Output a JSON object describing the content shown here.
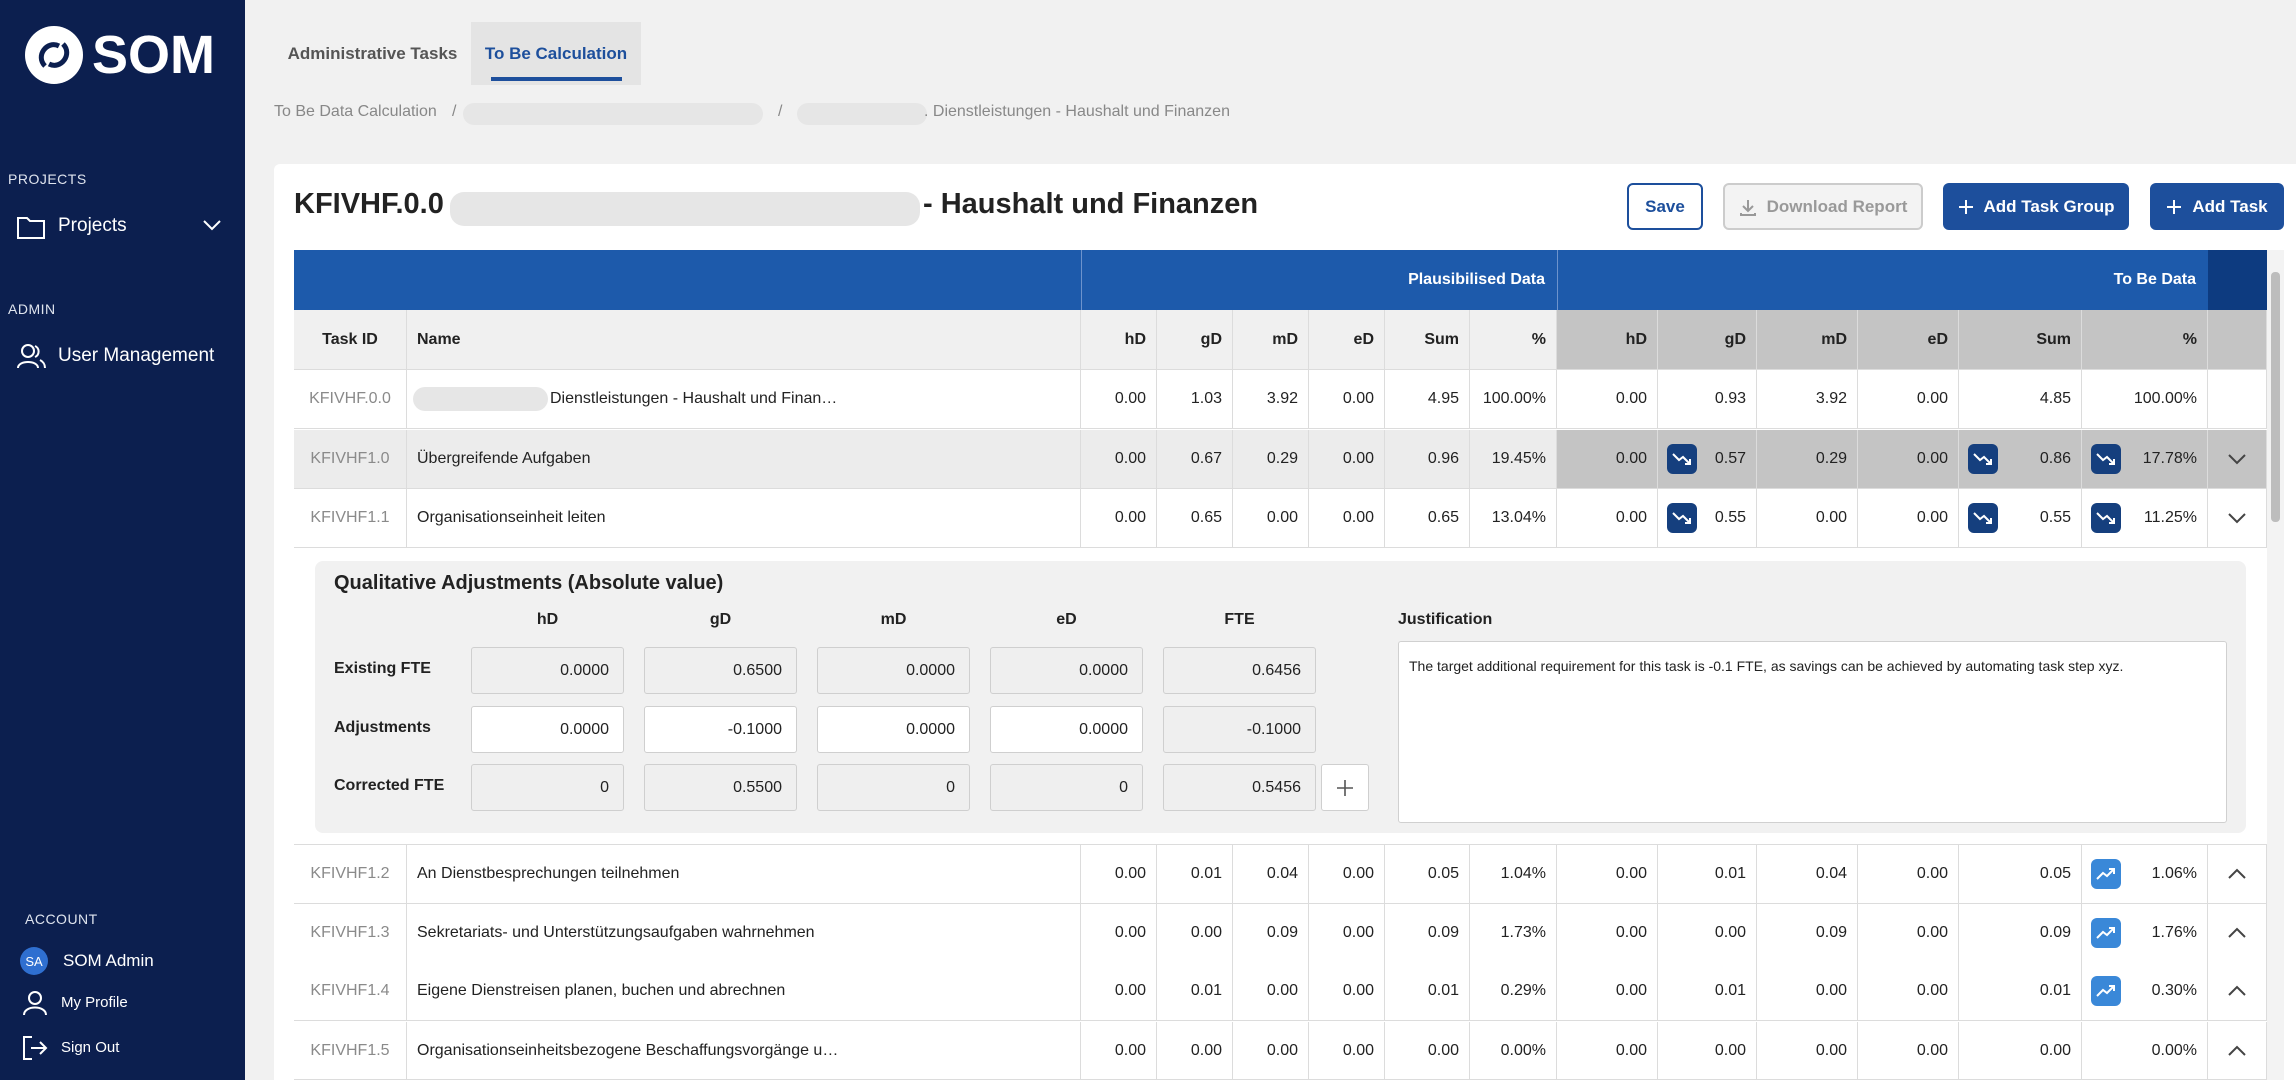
{
  "sidebar": {
    "logo": "SOM",
    "projects_section": "PROJECTS",
    "projects": "Projects",
    "admin_section": "ADMIN",
    "user_management": "User Management",
    "account_section": "ACCOUNT",
    "user_initials": "SA",
    "user_name": "SOM Admin",
    "my_profile": "My Profile",
    "sign_out": "Sign Out"
  },
  "tabs": [
    "Administrative Tasks",
    "To Be Calculation"
  ],
  "breadcrumb": [
    "To Be Data Calculation",
    ". Dienstleistungen - Haushalt und Finanzen"
  ],
  "title": {
    "prefix": "KFIVHF.0.0 -",
    "suffix": "- Haushalt und Finanzen"
  },
  "buttons": {
    "save": "Save",
    "download": "Download Report",
    "add_task_group": "Add Task Group",
    "add_task": "Add Task"
  },
  "table": {
    "group_headers": [
      "Plausibilised Data",
      "To Be Data"
    ],
    "columns": [
      "Task ID",
      "Name",
      "hD",
      "gD",
      "mD",
      "eD",
      "Sum",
      "%",
      "hD",
      "gD",
      "mD",
      "eD",
      "Sum",
      "%"
    ],
    "rows": [
      {
        "id": "KFIVHF.0.0",
        "name": "Dienstleistungen - Haushalt und Finan…",
        "values": [
          "0.00",
          "1.03",
          "3.92",
          "0.00",
          "4.95",
          "100.00%",
          "0.00",
          "0.93",
          "3.92",
          "0.00",
          "4.85",
          "100.00%"
        ],
        "trends": [
          null,
          null,
          null,
          null,
          null,
          null,
          null,
          null,
          null,
          null,
          null,
          null
        ],
        "chevron": null
      },
      {
        "id": "KFIVHF1.0",
        "name": "Übergreifende Aufgaben",
        "values": [
          "0.00",
          "0.67",
          "0.29",
          "0.00",
          "0.96",
          "19.45%",
          "0.00",
          "0.57",
          "0.29",
          "0.00",
          "0.86",
          "17.78%"
        ],
        "trends": [
          null,
          null,
          null,
          null,
          null,
          null,
          null,
          "down",
          null,
          null,
          "down",
          "down"
        ],
        "chevron": "down"
      },
      {
        "id": "KFIVHF1.1",
        "name": "Organisationseinheit leiten",
        "values": [
          "0.00",
          "0.65",
          "0.00",
          "0.00",
          "0.65",
          "13.04%",
          "0.00",
          "0.55",
          "0.00",
          "0.00",
          "0.55",
          "11.25%"
        ],
        "trends": [
          null,
          null,
          null,
          null,
          null,
          null,
          null,
          "down",
          null,
          null,
          "down",
          "down"
        ],
        "chevron": "down"
      },
      {
        "id": "KFIVHF1.2",
        "name": "An Dienstbesprechungen teilnehmen",
        "values": [
          "0.00",
          "0.01",
          "0.04",
          "0.00",
          "0.05",
          "1.04%",
          "0.00",
          "0.01",
          "0.04",
          "0.00",
          "0.05",
          "1.06%"
        ],
        "trends": [
          null,
          null,
          null,
          null,
          null,
          null,
          null,
          null,
          null,
          null,
          null,
          "up"
        ],
        "chevron": "up"
      },
      {
        "id": "KFIVHF1.3",
        "name": "Sekretariats- und Unterstützungsaufgaben wahrnehmen",
        "values": [
          "0.00",
          "0.00",
          "0.09",
          "0.00",
          "0.09",
          "1.73%",
          "0.00",
          "0.00",
          "0.09",
          "0.00",
          "0.09",
          "1.76%"
        ],
        "trends": [
          null,
          null,
          null,
          null,
          null,
          null,
          null,
          null,
          null,
          null,
          null,
          "up"
        ],
        "chevron": "up"
      },
      {
        "id": "KFIVHF1.4",
        "name": "Eigene Dienstreisen planen, buchen und abrechnen",
        "values": [
          "0.00",
          "0.01",
          "0.00",
          "0.00",
          "0.01",
          "0.29%",
          "0.00",
          "0.01",
          "0.00",
          "0.00",
          "0.01",
          "0.30%"
        ],
        "trends": [
          null,
          null,
          null,
          null,
          null,
          null,
          null,
          null,
          null,
          null,
          null,
          "up"
        ],
        "chevron": "up"
      },
      {
        "id": "KFIVHF1.5",
        "name": "Organisationseinheitsbezogene Beschaffungsvorgänge u…",
        "values": [
          "0.00",
          "0.00",
          "0.00",
          "0.00",
          "0.00",
          "0.00%",
          "0.00",
          "0.00",
          "0.00",
          "0.00",
          "0.00",
          "0.00%"
        ],
        "trends": [
          null,
          null,
          null,
          null,
          null,
          null,
          null,
          null,
          null,
          null,
          null,
          null
        ],
        "chevron": "up"
      }
    ]
  },
  "adjustments": {
    "title": "Qualitative Adjustments (Absolute value)",
    "columns": [
      "hD",
      "gD",
      "mD",
      "eD",
      "FTE"
    ],
    "rows": [
      {
        "label": "Existing FTE",
        "values": [
          "0.0000",
          "0.6500",
          "0.0000",
          "0.0000",
          "0.6456"
        ],
        "editable": false
      },
      {
        "label": "Adjustments",
        "values": [
          "0.0000",
          "-0.1000",
          "0.0000",
          "0.0000",
          "-0.1000"
        ],
        "editable": true
      },
      {
        "label": "Corrected FTE",
        "values": [
          "0",
          "0.5500",
          "0",
          "0",
          "0.5456"
        ],
        "editable": false
      }
    ],
    "justification_label": "Justification",
    "justification": "The target additional requirement for this task is -0.1 FTE, as savings can be achieved by automating task step xyz."
  }
}
